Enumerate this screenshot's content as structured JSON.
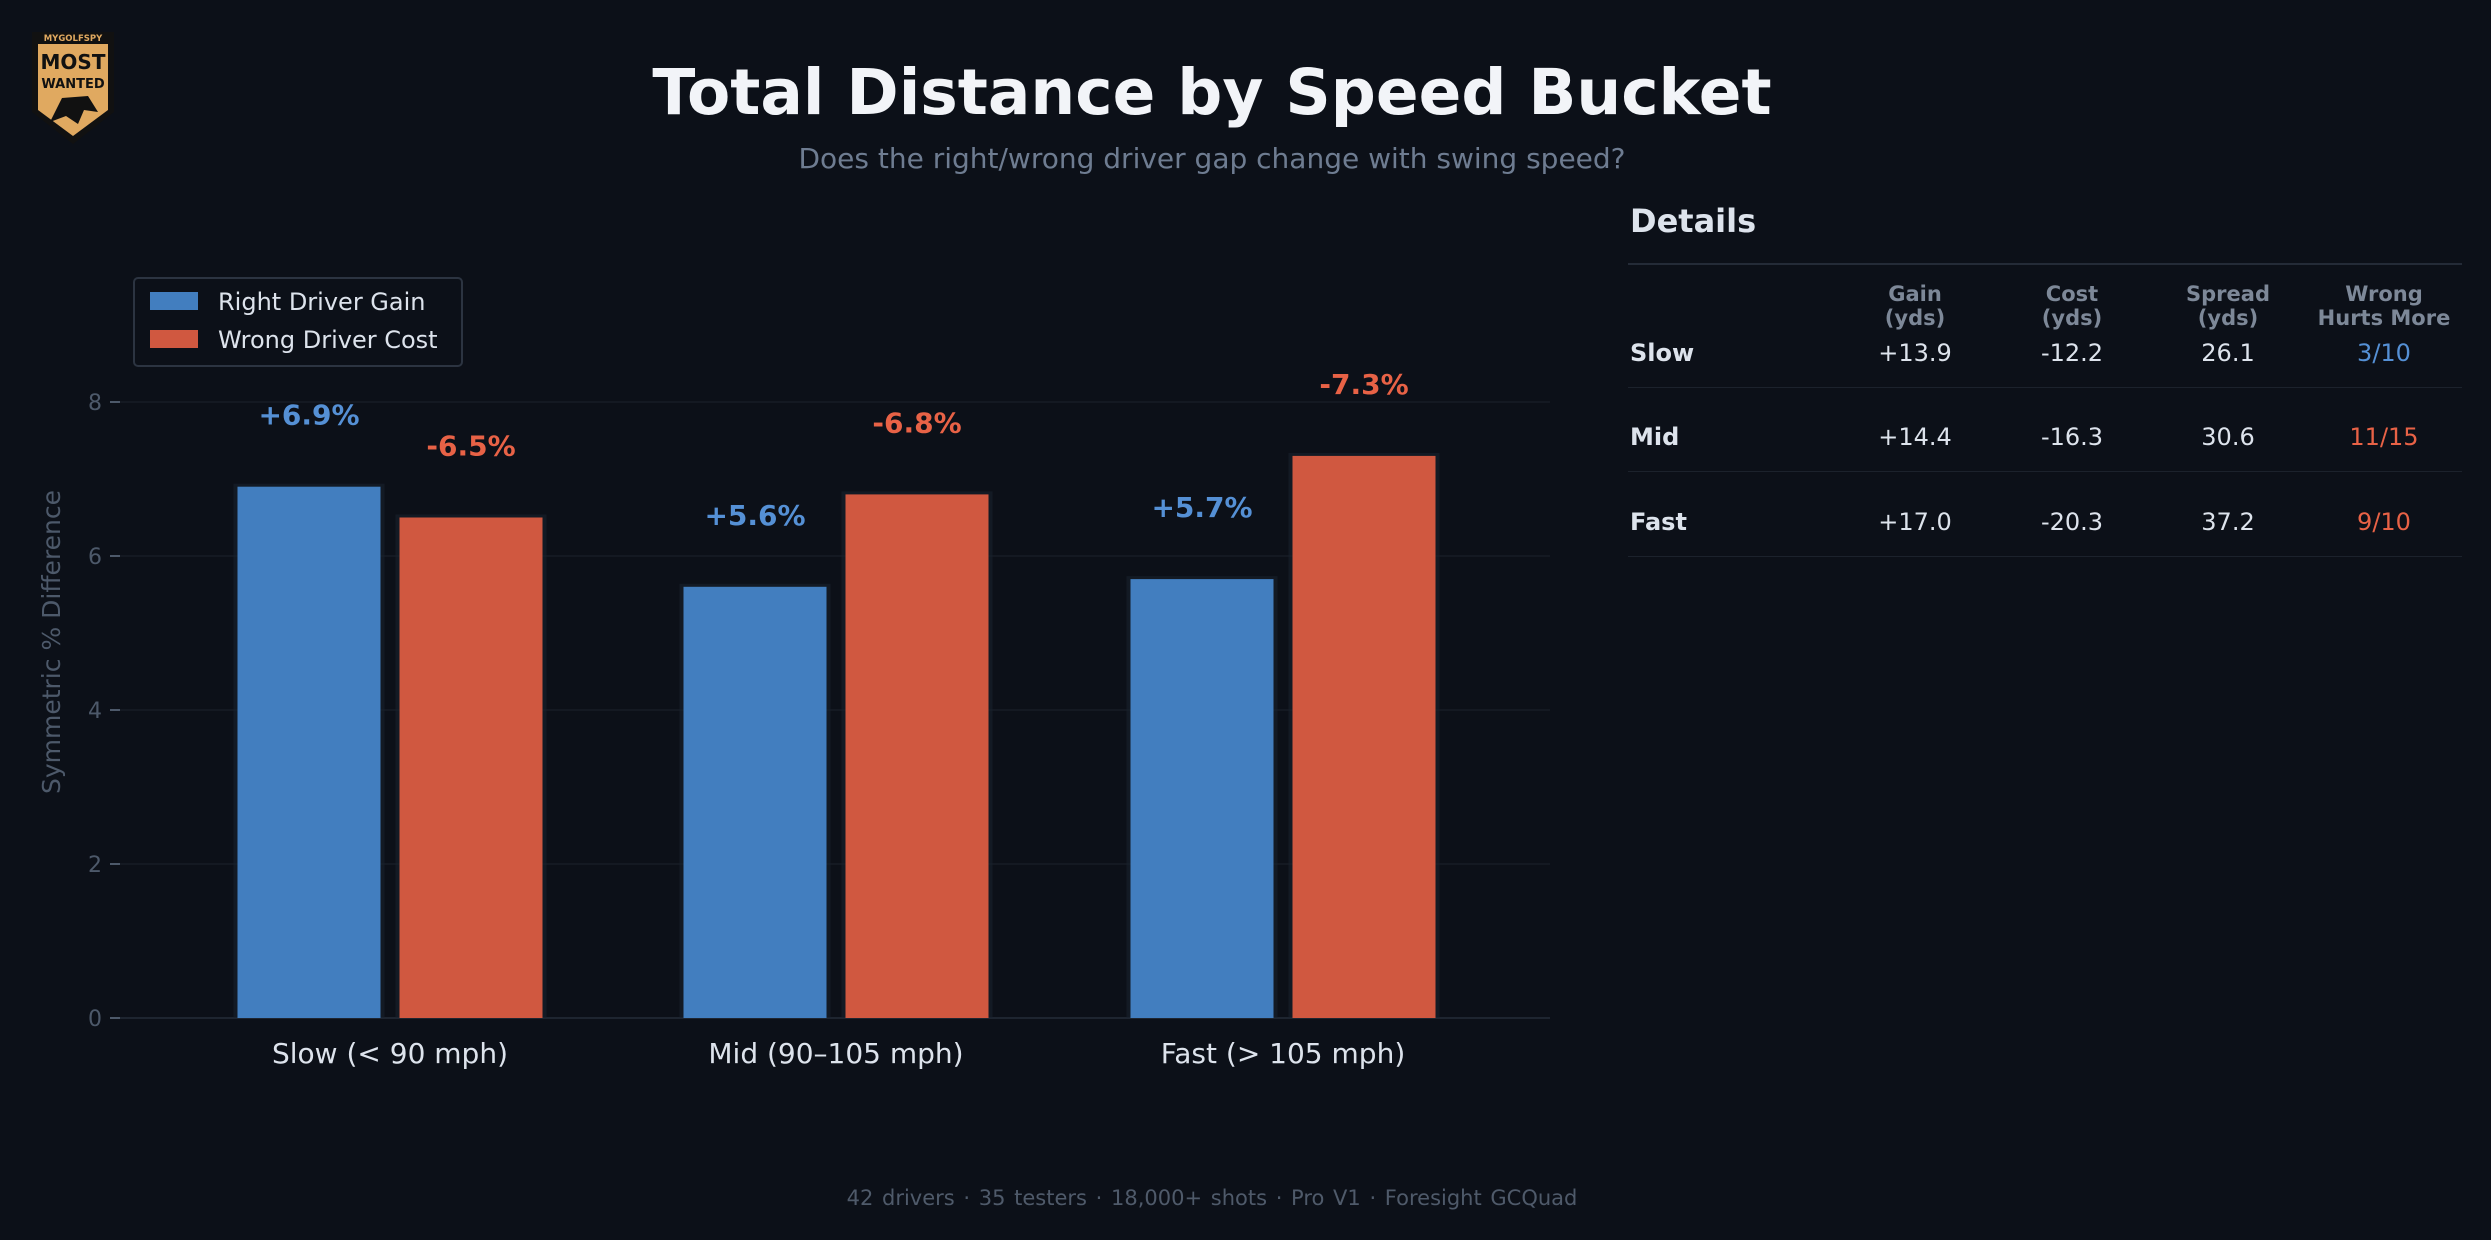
{
  "logo": {
    "top_text": "MYGOLFSPY",
    "line1": "MOST",
    "line2": "WANTED",
    "colors": {
      "shield": "#e0a960",
      "edge": "#111111"
    }
  },
  "header": {
    "title": "Total Distance by Speed Bucket",
    "subtitle": "Does the right/wrong driver gap change with swing speed?"
  },
  "colors": {
    "background": "#0c1018",
    "gain": "#427ebf",
    "cost": "#d05840",
    "gain_label": "#5590d5",
    "cost_label": "#e86246",
    "axis_text": "#4d596a"
  },
  "chart_data": {
    "type": "bar",
    "title": "",
    "categories": [
      "Slow (< 90 mph)",
      "Mid (90–105 mph)",
      "Fast (> 105 mph)"
    ],
    "series": [
      {
        "name": "Right Driver Gain",
        "values": [
          6.9,
          5.6,
          5.7
        ],
        "labels": [
          "+6.9%",
          "+5.6%",
          "+5.7%"
        ]
      },
      {
        "name": "Wrong Driver Cost",
        "values": [
          6.5,
          6.8,
          7.3
        ],
        "labels": [
          "-6.5%",
          "-6.8%",
          "-7.3%"
        ]
      }
    ],
    "xlabel": "",
    "ylabel": "Symmetric % Difference",
    "ylim": [
      0,
      8.9
    ],
    "yticks": [
      0,
      2,
      4,
      6,
      8
    ],
    "grid": true,
    "legend_position": "top-left"
  },
  "details": {
    "title": "Details",
    "columns": [
      "Gain\n(yds)",
      "Cost\n(yds)",
      "Spread\n(yds)",
      "Wrong\nHurts More"
    ],
    "rows": [
      {
        "label": "Slow",
        "gain": "+13.9",
        "cost": "-12.2",
        "spread": "26.1",
        "wrong": "3/10",
        "wrong_color": "#5590d5"
      },
      {
        "label": "Mid",
        "gain": "+14.4",
        "cost": "-16.3",
        "spread": "30.6",
        "wrong": "11/15",
        "wrong_color": "#e86246"
      },
      {
        "label": "Fast",
        "gain": "+17.0",
        "cost": "-20.3",
        "spread": "37.2",
        "wrong": "9/10",
        "wrong_color": "#e86246"
      }
    ]
  },
  "footer": {
    "text": "42 drivers · 35 testers · 18,000+ shots · Pro V1 · Foresight GCQuad"
  }
}
